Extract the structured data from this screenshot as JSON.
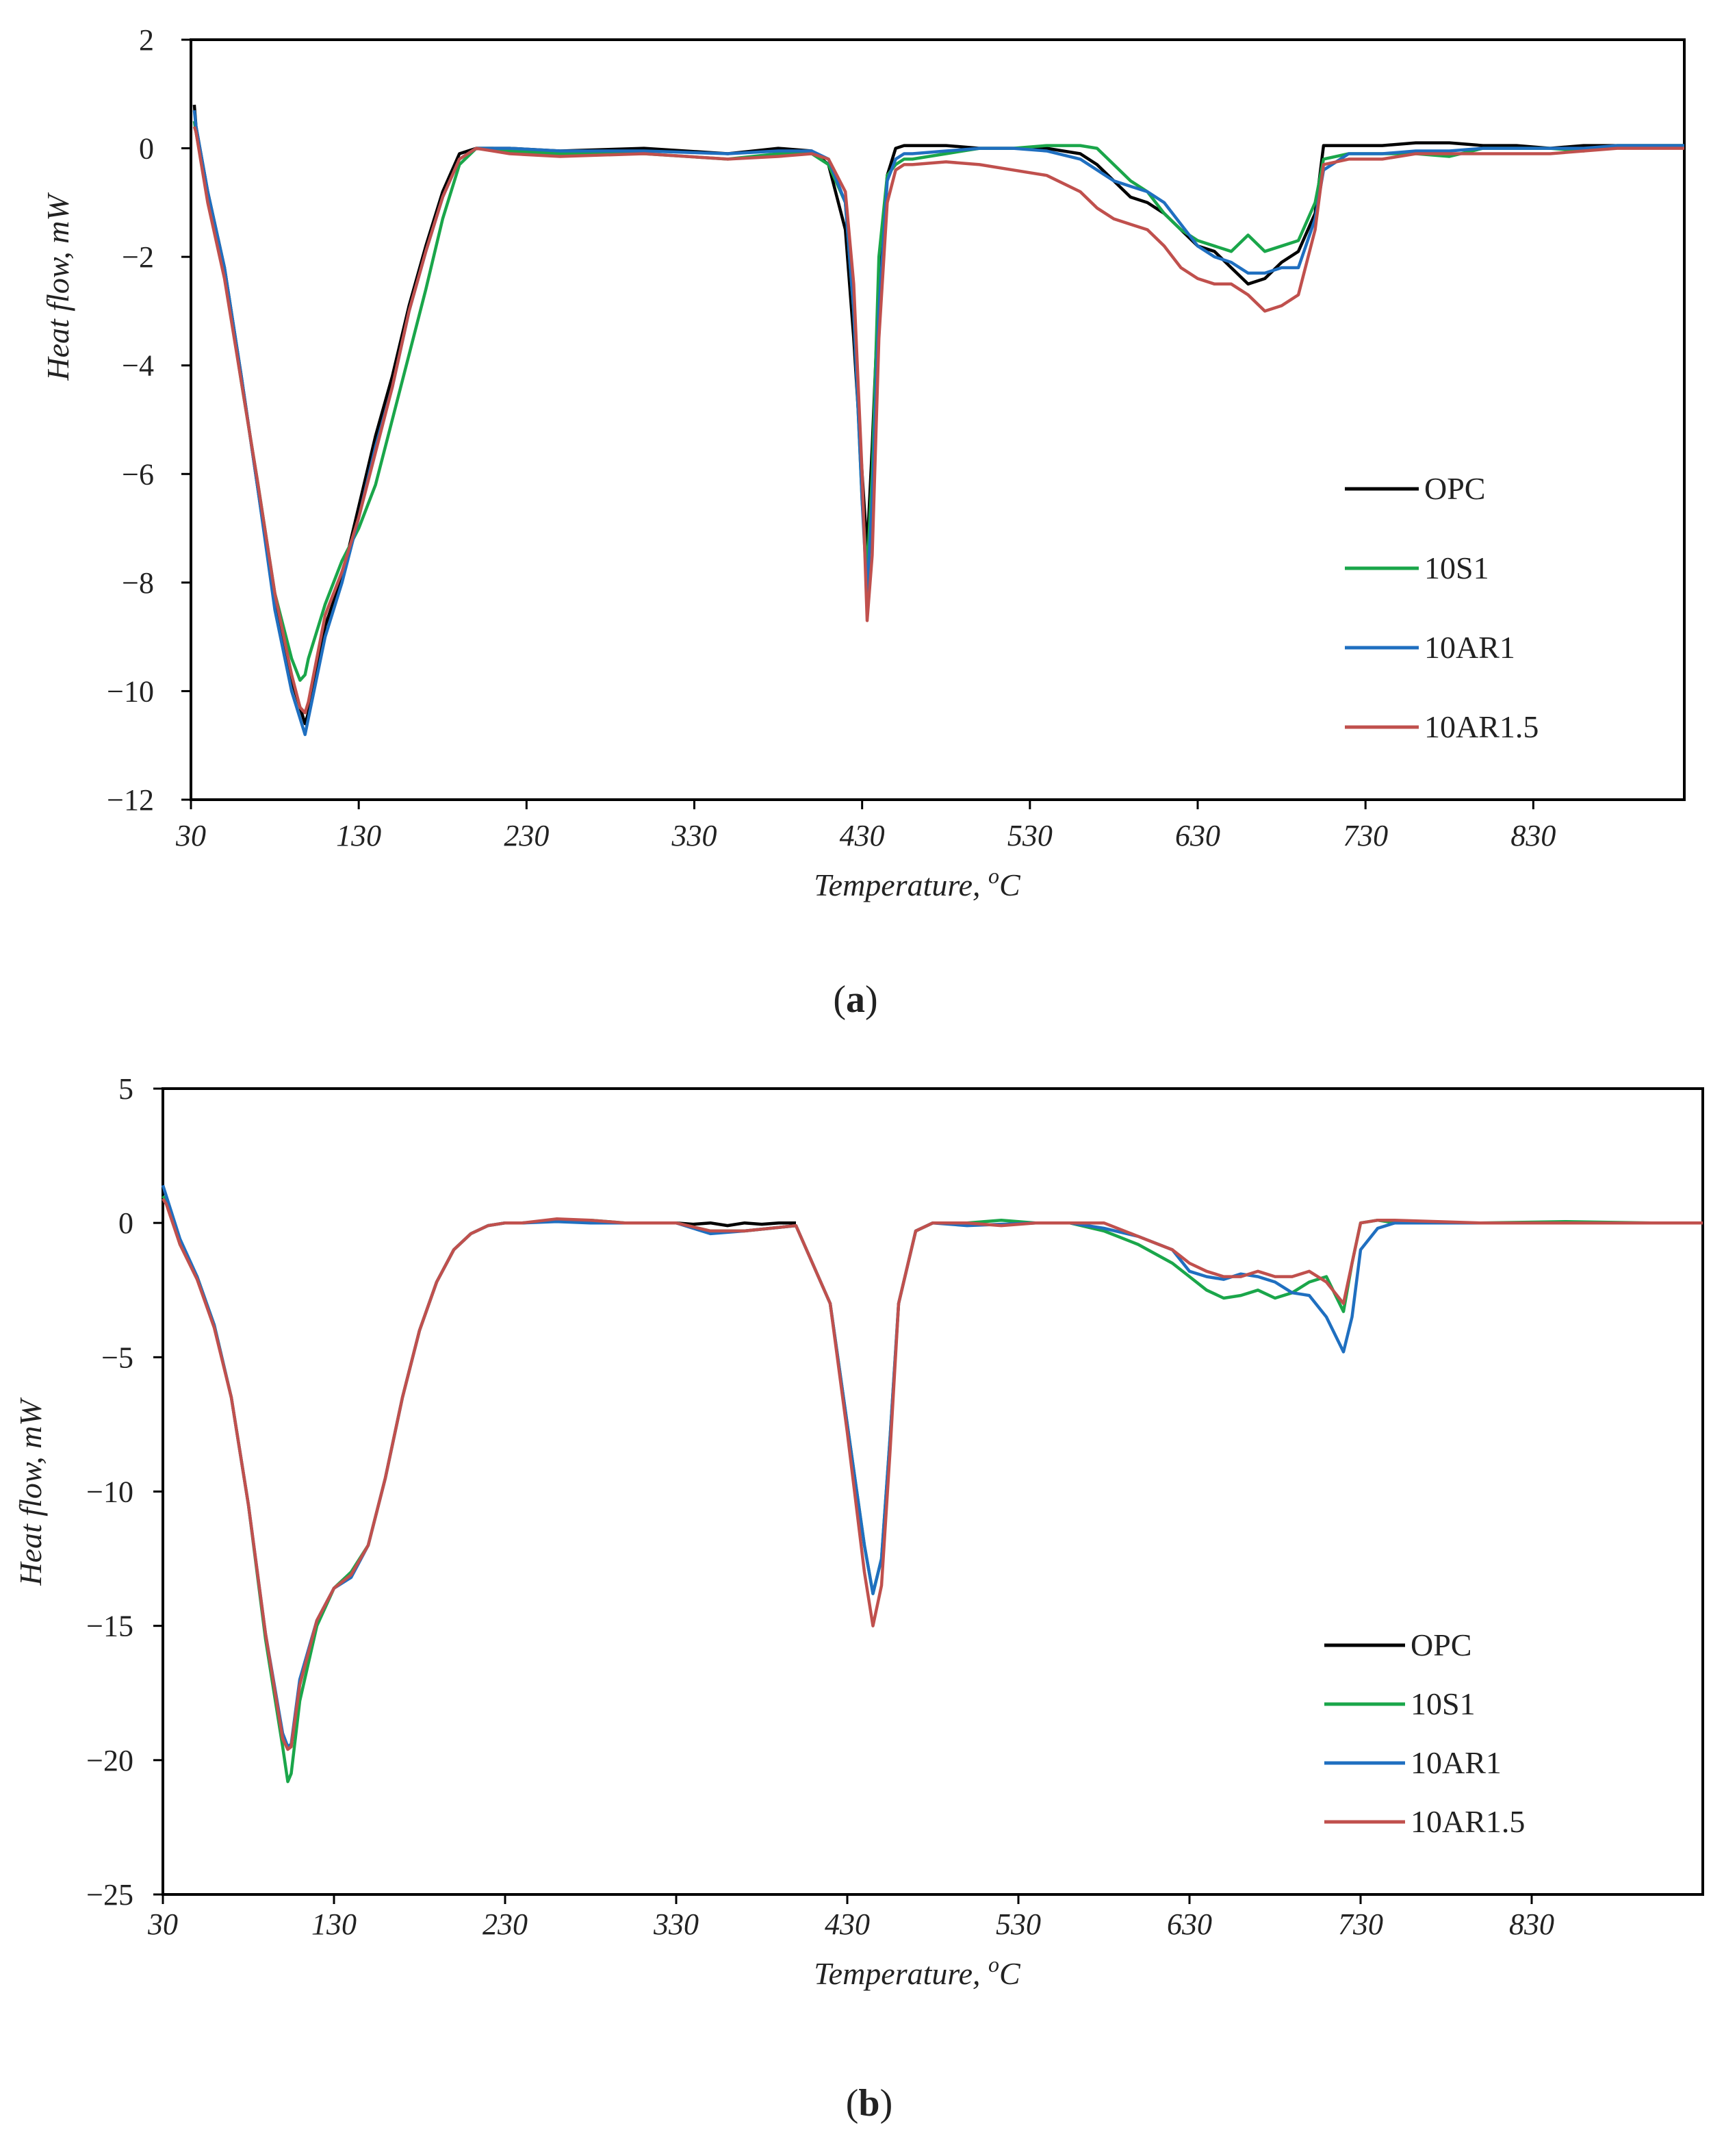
{
  "colors": {
    "OPC": "#000000",
    "10S1": "#1aa64a",
    "10AR1": "#1f6fc0",
    "10AR1.5": "#c0504d"
  },
  "chart_data": [
    {
      "type": "line",
      "panel_label": "a",
      "caption": {
        "open": "(",
        "letter": "a",
        "close": ")"
      },
      "xlabel": "Temperature, ",
      "xlabel_sup": "o",
      "xlabel_unit": "C",
      "ylabel": "Heat flow, mW",
      "xlim": [
        30,
        920
      ],
      "ylim": [
        -12,
        2
      ],
      "xticks": [
        30,
        130,
        230,
        330,
        430,
        530,
        630,
        730,
        830
      ],
      "yticks": [
        2,
        0,
        -2,
        -4,
        -6,
        -8,
        -10,
        -12
      ],
      "ytick_labels": [
        "2",
        "0",
        "−2",
        "−4",
        "−6",
        "−8",
        "−10",
        "−12"
      ],
      "legend": [
        "OPC",
        "10S1",
        "10AR1",
        "10AR1.5"
      ],
      "legend_position": "right",
      "series": [
        {
          "name": "OPC",
          "x": [
            32,
            33,
            40,
            50,
            60,
            70,
            80,
            90,
            95,
            98,
            100,
            110,
            120,
            130,
            140,
            150,
            160,
            170,
            180,
            190,
            200,
            210,
            220,
            250,
            300,
            350,
            380,
            400,
            410,
            420,
            425,
            430,
            433,
            436,
            440,
            445,
            450,
            455,
            460,
            480,
            500,
            520,
            540,
            560,
            570,
            580,
            590,
            600,
            610,
            620,
            630,
            640,
            650,
            660,
            670,
            680,
            690,
            700,
            705,
            720,
            740,
            760,
            780,
            800,
            820,
            840,
            860,
            880,
            900,
            920
          ],
          "y": [
            0.8,
            0.4,
            -0.8,
            -2.2,
            -4.2,
            -6.3,
            -8.4,
            -9.8,
            -10.3,
            -10.6,
            -10.4,
            -8.8,
            -7.9,
            -6.6,
            -5.3,
            -4.2,
            -2.9,
            -1.8,
            -0.8,
            -0.1,
            0.0,
            0.0,
            0.0,
            -0.05,
            0.0,
            -0.1,
            0.0,
            -0.05,
            -0.3,
            -1.5,
            -3.5,
            -6.0,
            -7.4,
            -5.5,
            -2.5,
            -0.5,
            0.0,
            0.05,
            0.05,
            0.05,
            0.0,
            0.0,
            0.0,
            -0.1,
            -0.3,
            -0.6,
            -0.9,
            -1.0,
            -1.2,
            -1.5,
            -1.8,
            -1.9,
            -2.2,
            -2.5,
            -2.4,
            -2.1,
            -1.9,
            -1.2,
            0.05,
            0.05,
            0.05,
            0.1,
            0.1,
            0.05,
            0.05,
            0.0,
            0.05,
            0.05,
            0.05,
            0.05
          ]
        },
        {
          "name": "10S1",
          "x": [
            32,
            33,
            40,
            50,
            60,
            70,
            80,
            90,
            95,
            98,
            100,
            110,
            120,
            130,
            140,
            150,
            160,
            170,
            180,
            190,
            200,
            210,
            220,
            250,
            300,
            350,
            380,
            400,
            410,
            420,
            425,
            430,
            433,
            436,
            440,
            445,
            450,
            455,
            460,
            480,
            500,
            520,
            540,
            560,
            570,
            580,
            590,
            600,
            610,
            620,
            630,
            640,
            650,
            660,
            670,
            680,
            690,
            700,
            705,
            720,
            740,
            760,
            780,
            800,
            820,
            840,
            860,
            880,
            900,
            920
          ],
          "y": [
            0.5,
            0.3,
            -0.9,
            -2.3,
            -4.3,
            -6.2,
            -8.2,
            -9.4,
            -9.8,
            -9.7,
            -9.4,
            -8.4,
            -7.6,
            -7.0,
            -6.2,
            -5.0,
            -3.8,
            -2.6,
            -1.3,
            -0.3,
            0.0,
            0.0,
            -0.05,
            -0.1,
            -0.1,
            -0.2,
            -0.1,
            -0.1,
            -0.3,
            -1.0,
            -3.0,
            -6.5,
            -7.8,
            -6.0,
            -2.0,
            -0.5,
            -0.3,
            -0.2,
            -0.2,
            -0.1,
            0.0,
            0.0,
            0.05,
            0.05,
            0.0,
            -0.3,
            -0.6,
            -0.8,
            -1.2,
            -1.5,
            -1.7,
            -1.8,
            -1.9,
            -1.6,
            -1.9,
            -1.8,
            -1.7,
            -1.0,
            -0.2,
            -0.1,
            -0.1,
            -0.1,
            -0.15,
            0.0,
            0.0,
            0.0,
            -0.05,
            0.05,
            0.05,
            0.05
          ]
        },
        {
          "name": "10AR1",
          "x": [
            32,
            33,
            40,
            50,
            60,
            70,
            80,
            90,
            95,
            98,
            100,
            110,
            120,
            130,
            140,
            150,
            160,
            170,
            180,
            190,
            200,
            210,
            220,
            250,
            300,
            350,
            380,
            400,
            410,
            420,
            425,
            430,
            433,
            436,
            440,
            445,
            450,
            455,
            460,
            480,
            500,
            520,
            540,
            560,
            570,
            580,
            590,
            600,
            610,
            620,
            630,
            640,
            650,
            660,
            670,
            680,
            690,
            700,
            705,
            720,
            740,
            760,
            780,
            800,
            820,
            840,
            860,
            880,
            900,
            920
          ],
          "y": [
            0.7,
            0.4,
            -0.8,
            -2.2,
            -4.2,
            -6.3,
            -8.5,
            -10.0,
            -10.5,
            -10.8,
            -10.5,
            -9.0,
            -8.0,
            -6.8,
            -5.5,
            -4.4,
            -3.0,
            -1.9,
            -0.9,
            -0.2,
            0.0,
            0.0,
            0.0,
            -0.05,
            -0.05,
            -0.1,
            -0.05,
            -0.05,
            -0.2,
            -1.0,
            -3.0,
            -6.5,
            -8.2,
            -6.5,
            -3.0,
            -0.6,
            -0.2,
            -0.1,
            -0.1,
            -0.05,
            0.0,
            0.0,
            -0.05,
            -0.2,
            -0.4,
            -0.6,
            -0.7,
            -0.8,
            -1.0,
            -1.4,
            -1.8,
            -2.0,
            -2.1,
            -2.3,
            -2.3,
            -2.2,
            -2.2,
            -1.3,
            -0.4,
            -0.1,
            -0.1,
            -0.05,
            -0.05,
            0.0,
            0.0,
            0.0,
            0.0,
            0.05,
            0.05,
            0.05
          ]
        },
        {
          "name": "10AR1.5",
          "x": [
            32,
            33,
            40,
            50,
            60,
            70,
            80,
            90,
            95,
            98,
            100,
            110,
            120,
            130,
            140,
            150,
            160,
            170,
            180,
            190,
            200,
            210,
            220,
            250,
            300,
            350,
            380,
            400,
            410,
            420,
            425,
            430,
            433,
            436,
            440,
            445,
            450,
            455,
            460,
            480,
            500,
            520,
            540,
            560,
            570,
            580,
            590,
            600,
            610,
            620,
            630,
            640,
            650,
            660,
            670,
            680,
            690,
            700,
            705,
            720,
            740,
            760,
            780,
            800,
            820,
            840,
            860,
            880,
            900,
            920
          ],
          "y": [
            0.4,
            0.3,
            -1.0,
            -2.4,
            -4.3,
            -6.2,
            -8.2,
            -9.7,
            -10.3,
            -10.4,
            -10.2,
            -8.6,
            -7.8,
            -6.8,
            -5.6,
            -4.4,
            -3.0,
            -1.9,
            -0.9,
            -0.2,
            0.0,
            -0.05,
            -0.1,
            -0.15,
            -0.1,
            -0.2,
            -0.15,
            -0.1,
            -0.2,
            -0.8,
            -2.5,
            -6.0,
            -8.7,
            -7.5,
            -3.5,
            -1.0,
            -0.4,
            -0.3,
            -0.3,
            -0.25,
            -0.3,
            -0.4,
            -0.5,
            -0.8,
            -1.1,
            -1.3,
            -1.4,
            -1.5,
            -1.8,
            -2.2,
            -2.4,
            -2.5,
            -2.5,
            -2.7,
            -3.0,
            -2.9,
            -2.7,
            -1.5,
            -0.3,
            -0.2,
            -0.2,
            -0.1,
            -0.1,
            -0.1,
            -0.1,
            -0.1,
            -0.05,
            0.0,
            0.0,
            0.0
          ]
        }
      ]
    },
    {
      "type": "line",
      "panel_label": "b",
      "caption": {
        "open": "(",
        "letter": "b",
        "close": ")"
      },
      "xlabel": "Temperature, ",
      "xlabel_sup": "o",
      "xlabel_unit": "C",
      "ylabel": "Heat flow, mW",
      "xlim": [
        30,
        930
      ],
      "ylim": [
        -25,
        5
      ],
      "xticks": [
        30,
        130,
        230,
        330,
        430,
        530,
        630,
        730,
        830
      ],
      "yticks": [
        5,
        0,
        -5,
        -10,
        -15,
        -20,
        -25
      ],
      "ytick_labels": [
        "5",
        "0",
        "−5",
        "−10",
        "−15",
        "−20",
        "−25"
      ],
      "legend": [
        "OPC",
        "10S1",
        "10AR1",
        "10AR1.5"
      ],
      "legend_position": "lower-right",
      "series": [
        {
          "name": "OPC",
          "x": [
            330,
            340,
            350,
            360,
            370,
            380,
            390,
            400
          ],
          "y": [
            0.0,
            -0.05,
            0.0,
            -0.1,
            0.0,
            -0.05,
            0.0,
            0.0
          ]
        },
        {
          "name": "10S1",
          "x": [
            30,
            32,
            40,
            50,
            60,
            70,
            80,
            90,
            100,
            103,
            105,
            110,
            120,
            130,
            140,
            150,
            160,
            170,
            180,
            190,
            200,
            210,
            220,
            230,
            240,
            260,
            280,
            300,
            330,
            350,
            370,
            400,
            420,
            430,
            440,
            445,
            450,
            455,
            460,
            470,
            480,
            500,
            520,
            540,
            560,
            580,
            600,
            620,
            630,
            640,
            650,
            660,
            670,
            680,
            690,
            700,
            710,
            720,
            725,
            730,
            740,
            750,
            800,
            850,
            900,
            930
          ],
          "y": [
            1.0,
            0.8,
            -0.8,
            -2.0,
            -3.8,
            -6.5,
            -10.5,
            -15.5,
            -19.5,
            -20.8,
            -20.5,
            -17.8,
            -15.0,
            -13.6,
            -13.0,
            -12.0,
            -9.5,
            -6.5,
            -4.0,
            -2.2,
            -1.0,
            -0.4,
            -0.1,
            0.0,
            0.0,
            0.1,
            0.1,
            0.0,
            0.0,
            -0.3,
            -0.3,
            -0.1,
            -3.0,
            -7.5,
            -12.0,
            -13.8,
            -12.5,
            -8.0,
            -3.0,
            -0.3,
            0.0,
            0.0,
            0.1,
            0.0,
            0.0,
            -0.3,
            -0.8,
            -1.5,
            -2.0,
            -2.5,
            -2.8,
            -2.7,
            -2.5,
            -2.8,
            -2.6,
            -2.2,
            -2.0,
            -3.3,
            -1.5,
            0.0,
            0.1,
            0.0,
            0.0,
            0.05,
            0.0,
            0.0
          ]
        },
        {
          "name": "10AR1",
          "x": [
            30,
            32,
            40,
            50,
            60,
            70,
            80,
            90,
            100,
            103,
            105,
            110,
            120,
            130,
            140,
            150,
            160,
            170,
            180,
            190,
            200,
            210,
            220,
            230,
            240,
            260,
            280,
            300,
            330,
            350,
            370,
            400,
            420,
            430,
            440,
            445,
            450,
            455,
            460,
            470,
            480,
            500,
            520,
            540,
            560,
            580,
            600,
            620,
            630,
            640,
            650,
            660,
            670,
            680,
            690,
            700,
            710,
            720,
            725,
            730,
            740,
            750,
            800,
            850,
            900,
            930
          ],
          "y": [
            1.4,
            1.0,
            -0.6,
            -2.0,
            -3.8,
            -6.5,
            -10.5,
            -15.3,
            -19.0,
            -19.5,
            -19.4,
            -17.0,
            -14.8,
            -13.6,
            -13.2,
            -12.0,
            -9.5,
            -6.5,
            -4.0,
            -2.2,
            -1.0,
            -0.4,
            -0.1,
            0.0,
            0.0,
            0.05,
            0.0,
            0.0,
            0.0,
            -0.4,
            -0.3,
            -0.1,
            -3.0,
            -7.5,
            -12.0,
            -13.8,
            -12.5,
            -8.0,
            -3.0,
            -0.3,
            0.0,
            -0.1,
            -0.05,
            0.0,
            0.0,
            -0.2,
            -0.5,
            -1.0,
            -1.8,
            -2.0,
            -2.1,
            -1.9,
            -2.0,
            -2.2,
            -2.6,
            -2.7,
            -3.5,
            -4.8,
            -3.5,
            -1.0,
            -0.2,
            0.0,
            0.0,
            0.0,
            0.0,
            0.0
          ]
        },
        {
          "name": "10AR1.5",
          "x": [
            30,
            32,
            40,
            50,
            60,
            70,
            80,
            90,
            100,
            103,
            105,
            110,
            120,
            130,
            140,
            150,
            160,
            170,
            180,
            190,
            200,
            210,
            220,
            230,
            240,
            260,
            280,
            300,
            330,
            350,
            370,
            400,
            420,
            430,
            440,
            445,
            450,
            455,
            460,
            470,
            480,
            500,
            520,
            540,
            560,
            580,
            600,
            620,
            630,
            640,
            650,
            660,
            670,
            680,
            690,
            700,
            710,
            720,
            725,
            730,
            740,
            750,
            800,
            850,
            900,
            930
          ],
          "y": [
            0.9,
            0.7,
            -0.8,
            -2.1,
            -3.9,
            -6.5,
            -10.5,
            -15.3,
            -19.2,
            -19.6,
            -19.5,
            -17.2,
            -14.8,
            -13.6,
            -13.1,
            -12.0,
            -9.5,
            -6.5,
            -4.0,
            -2.2,
            -1.0,
            -0.4,
            -0.1,
            0.0,
            0.0,
            0.15,
            0.1,
            0.0,
            0.0,
            -0.3,
            -0.3,
            -0.1,
            -3.0,
            -7.8,
            -13.0,
            -15.0,
            -13.5,
            -8.5,
            -3.0,
            -0.3,
            0.0,
            0.0,
            -0.1,
            0.0,
            0.0,
            0.0,
            -0.5,
            -1.0,
            -1.5,
            -1.8,
            -2.0,
            -2.0,
            -1.8,
            -2.0,
            -2.0,
            -1.8,
            -2.2,
            -3.0,
            -1.5,
            0.0,
            0.1,
            0.1,
            0.0,
            0.0,
            0.0,
            0.0
          ]
        }
      ]
    }
  ]
}
